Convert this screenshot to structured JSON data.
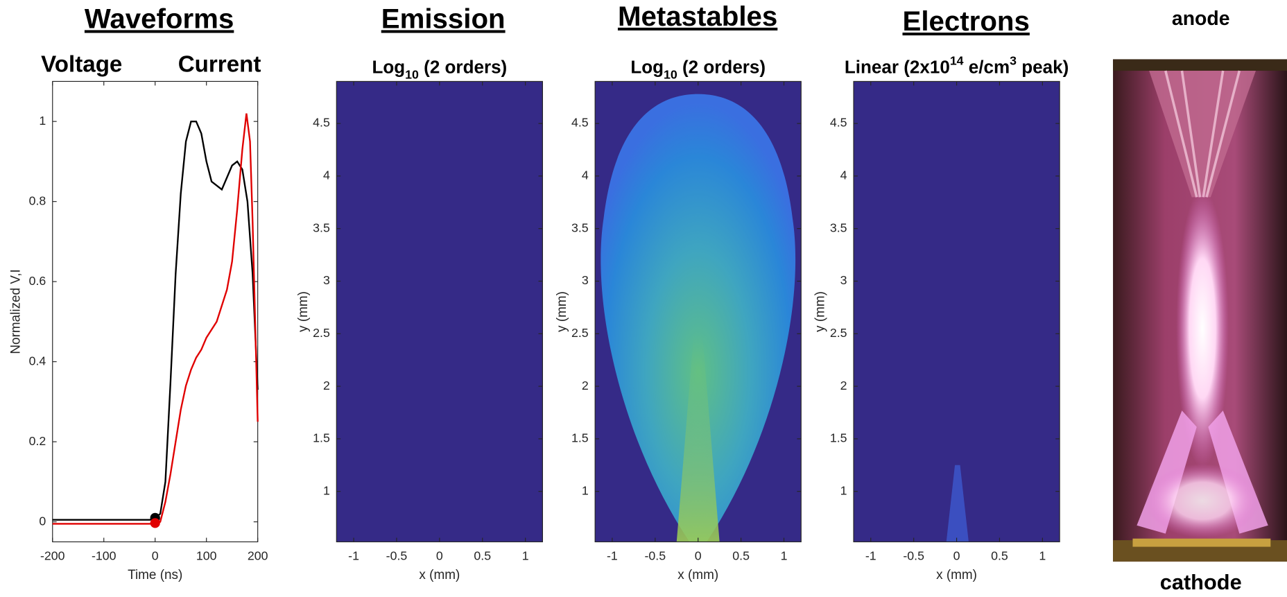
{
  "chart_data": [
    {
      "type": "line",
      "title": "Waveforms",
      "y_label": "Normalized V,I",
      "x_label": "Time (ns)",
      "xlim": [
        -200,
        200
      ],
      "ylim": [
        -0.05,
        1.1
      ],
      "xticks": [
        -200,
        -100,
        0,
        100,
        200
      ],
      "yticks": [
        0,
        0.2,
        0.4,
        0.6,
        0.8,
        1
      ],
      "series": [
        {
          "name": "Voltage",
          "color": "#000000",
          "x": [
            -200,
            -150,
            -100,
            -50,
            -10,
            0,
            10,
            20,
            30,
            40,
            50,
            60,
            70,
            80,
            90,
            100,
            110,
            120,
            130,
            140,
            150,
            160,
            170,
            180,
            190,
            200
          ],
          "values": [
            0.005,
            0.005,
            0.005,
            0.005,
            0.005,
            0.01,
            0.02,
            0.1,
            0.35,
            0.62,
            0.82,
            0.95,
            1.0,
            1.0,
            0.97,
            0.9,
            0.85,
            0.84,
            0.83,
            0.86,
            0.89,
            0.9,
            0.88,
            0.8,
            0.62,
            0.33
          ]
        },
        {
          "name": "Current",
          "color": "#e00000",
          "x": [
            -200,
            -100,
            0,
            10,
            20,
            30,
            40,
            50,
            60,
            70,
            80,
            90,
            100,
            120,
            140,
            150,
            160,
            170,
            178,
            185,
            190,
            200
          ],
          "values": [
            -0.005,
            -0.005,
            -0.005,
            0.0,
            0.05,
            0.12,
            0.2,
            0.28,
            0.34,
            0.38,
            0.41,
            0.43,
            0.46,
            0.5,
            0.58,
            0.65,
            0.78,
            0.93,
            1.02,
            0.95,
            0.75,
            0.25
          ]
        }
      ],
      "points": [
        {
          "x": 0,
          "y": 0.01,
          "color": "#000000"
        },
        {
          "x": 0,
          "y": -0.003,
          "color": "#e00000"
        }
      ]
    },
    {
      "type": "image",
      "title": "Emission",
      "subtitle": [
        {
          "text": "Log"
        },
        {
          "text": "10",
          "shift": "sub"
        },
        {
          "text": " (2 orders)"
        }
      ],
      "x_label": "x (mm)",
      "y_label": "y (mm)",
      "xlim": [
        -1.2,
        1.2
      ],
      "ylim": [
        0.52,
        4.9
      ],
      "xticks": [
        -1,
        -0.5,
        0,
        0.5,
        1
      ],
      "yticks": [
        1,
        1.5,
        2,
        2.5,
        3,
        3.5,
        4,
        4.5
      ],
      "pattern": "empty"
    },
    {
      "type": "image",
      "title": "Metastables",
      "subtitle": [
        {
          "text": "Log"
        },
        {
          "text": "10",
          "shift": "sub"
        },
        {
          "text": " (2 orders)"
        }
      ],
      "x_label": "x (mm)",
      "y_label": "y (mm)",
      "xlim": [
        -1.2,
        1.2
      ],
      "ylim": [
        0.52,
        4.9
      ],
      "xticks": [
        -1,
        -0.5,
        0,
        0.5,
        1
      ],
      "yticks": [
        1,
        1.5,
        2,
        2.5,
        3,
        3.5,
        4,
        4.5
      ],
      "pattern": "plume"
    },
    {
      "type": "image",
      "title": "Electrons",
      "subtitle": [
        {
          "text": "Linear (2x10"
        },
        {
          "text": "14",
          "shift": "super"
        },
        {
          "text": " e/cm"
        },
        {
          "text": "3",
          "shift": "super"
        },
        {
          "text": " peak)"
        }
      ],
      "x_label": "x (mm)",
      "y_label": "y (mm)",
      "xlim": [
        -1.2,
        1.2
      ],
      "ylim": [
        0.52,
        4.9
      ],
      "xticks": [
        -1,
        -0.5,
        0,
        0.5,
        1
      ],
      "yticks": [
        1,
        1.5,
        2,
        2.5,
        3,
        3.5,
        4,
        4.5
      ],
      "pattern": "streak"
    }
  ],
  "photo": {
    "top_label": "anode",
    "bottom_label": "cathode"
  }
}
